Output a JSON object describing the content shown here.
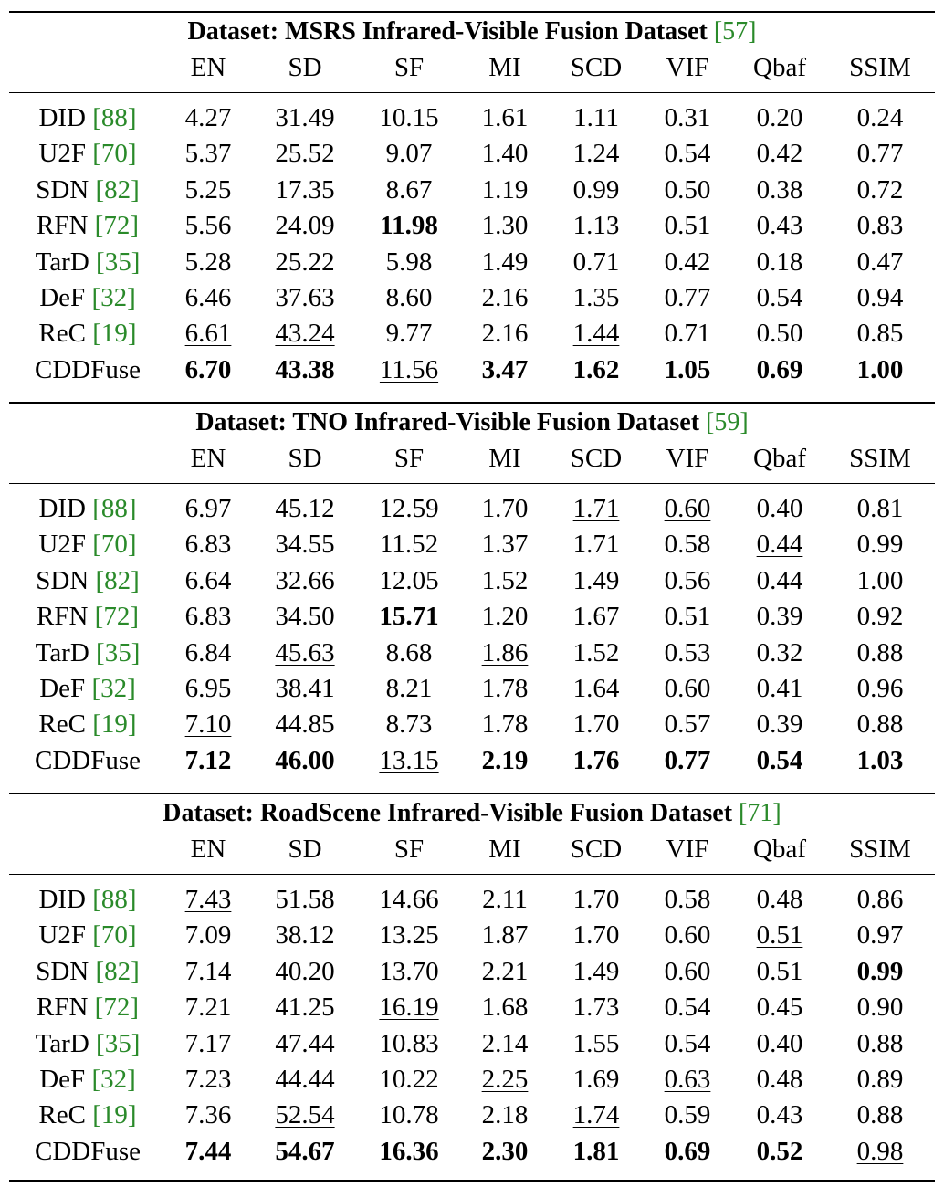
{
  "columns": [
    "EN",
    "SD",
    "SF",
    "MI",
    "SCD",
    "VIF",
    "Qbaf",
    "SSIM"
  ],
  "sections": [
    {
      "title": "Dataset: MSRS Infrared-Visible Fusion Dataset",
      "title_ref": "[57]",
      "rows": [
        {
          "method": "DID",
          "ref": "[88]",
          "values": [
            "4.27",
            "31.49",
            "10.15",
            "1.61",
            "1.11",
            "0.31",
            "0.20",
            "0.24"
          ],
          "bold": [],
          "underline": []
        },
        {
          "method": "U2F",
          "ref": "[70]",
          "values": [
            "5.37",
            "25.52",
            "9.07",
            "1.40",
            "1.24",
            "0.54",
            "0.42",
            "0.77"
          ],
          "bold": [],
          "underline": []
        },
        {
          "method": "SDN",
          "ref": "[82]",
          "values": [
            "5.25",
            "17.35",
            "8.67",
            "1.19",
            "0.99",
            "0.50",
            "0.38",
            "0.72"
          ],
          "bold": [],
          "underline": []
        },
        {
          "method": "RFN",
          "ref": "[72]",
          "values": [
            "5.56",
            "24.09",
            "11.98",
            "1.30",
            "1.13",
            "0.51",
            "0.43",
            "0.83"
          ],
          "bold": [
            2
          ],
          "underline": []
        },
        {
          "method": "TarD",
          "ref": "[35]",
          "values": [
            "5.28",
            "25.22",
            "5.98",
            "1.49",
            "0.71",
            "0.42",
            "0.18",
            "0.47"
          ],
          "bold": [],
          "underline": []
        },
        {
          "method": "DeF",
          "ref": "[32]",
          "values": [
            "6.46",
            "37.63",
            "8.60",
            "2.16",
            "1.35",
            "0.77",
            "0.54",
            "0.94"
          ],
          "bold": [],
          "underline": [
            3,
            5,
            6,
            7
          ]
        },
        {
          "method": "ReC",
          "ref": "[19]",
          "values": [
            "6.61",
            "43.24",
            "9.77",
            "2.16",
            "1.44",
            "0.71",
            "0.50",
            "0.85"
          ],
          "bold": [],
          "underline": [
            0,
            1,
            4
          ]
        },
        {
          "method": "CDDFuse",
          "ref": "",
          "values": [
            "6.70",
            "43.38",
            "11.56",
            "3.47",
            "1.62",
            "1.05",
            "0.69",
            "1.00"
          ],
          "bold": [
            0,
            1,
            3,
            4,
            5,
            6,
            7
          ],
          "underline": [
            2
          ]
        }
      ]
    },
    {
      "title": "Dataset: TNO Infrared-Visible Fusion Dataset",
      "title_ref": "[59]",
      "rows": [
        {
          "method": "DID",
          "ref": "[88]",
          "values": [
            "6.97",
            "45.12",
            "12.59",
            "1.70",
            "1.71",
            "0.60",
            "0.40",
            "0.81"
          ],
          "bold": [],
          "underline": [
            4,
            5
          ]
        },
        {
          "method": "U2F",
          "ref": "[70]",
          "values": [
            "6.83",
            "34.55",
            "11.52",
            "1.37",
            "1.71",
            "0.58",
            "0.44",
            "0.99"
          ],
          "bold": [],
          "underline": [
            6
          ]
        },
        {
          "method": "SDN",
          "ref": "[82]",
          "values": [
            "6.64",
            "32.66",
            "12.05",
            "1.52",
            "1.49",
            "0.56",
            "0.44",
            "1.00"
          ],
          "bold": [],
          "underline": [
            7
          ]
        },
        {
          "method": "RFN",
          "ref": "[72]",
          "values": [
            "6.83",
            "34.50",
            "15.71",
            "1.20",
            "1.67",
            "0.51",
            "0.39",
            "0.92"
          ],
          "bold": [
            2
          ],
          "underline": []
        },
        {
          "method": "TarD",
          "ref": "[35]",
          "values": [
            "6.84",
            "45.63",
            "8.68",
            "1.86",
            "1.52",
            "0.53",
            "0.32",
            "0.88"
          ],
          "bold": [],
          "underline": [
            1,
            3
          ]
        },
        {
          "method": "DeF",
          "ref": "[32]",
          "values": [
            "6.95",
            "38.41",
            "8.21",
            "1.78",
            "1.64",
            "0.60",
            "0.41",
            "0.96"
          ],
          "bold": [],
          "underline": []
        },
        {
          "method": "ReC",
          "ref": "[19]",
          "values": [
            "7.10",
            "44.85",
            "8.73",
            "1.78",
            "1.70",
            "0.57",
            "0.39",
            "0.88"
          ],
          "bold": [],
          "underline": [
            0
          ]
        },
        {
          "method": "CDDFuse",
          "ref": "",
          "values": [
            "7.12",
            "46.00",
            "13.15",
            "2.19",
            "1.76",
            "0.77",
            "0.54",
            "1.03"
          ],
          "bold": [
            0,
            1,
            3,
            4,
            5,
            6,
            7
          ],
          "underline": [
            2
          ]
        }
      ]
    },
    {
      "title": "Dataset: RoadScene Infrared-Visible Fusion Dataset",
      "title_ref": "[71]",
      "rows": [
        {
          "method": "DID",
          "ref": "[88]",
          "values": [
            "7.43",
            "51.58",
            "14.66",
            "2.11",
            "1.70",
            "0.58",
            "0.48",
            "0.86"
          ],
          "bold": [],
          "underline": [
            0
          ]
        },
        {
          "method": "U2F",
          "ref": "[70]",
          "values": [
            "7.09",
            "38.12",
            "13.25",
            "1.87",
            "1.70",
            "0.60",
            "0.51",
            "0.97"
          ],
          "bold": [],
          "underline": [
            6
          ]
        },
        {
          "method": "SDN",
          "ref": "[82]",
          "values": [
            "7.14",
            "40.20",
            "13.70",
            "2.21",
            "1.49",
            "0.60",
            "0.51",
            "0.99"
          ],
          "bold": [
            7
          ],
          "underline": []
        },
        {
          "method": "RFN",
          "ref": "[72]",
          "values": [
            "7.21",
            "41.25",
            "16.19",
            "1.68",
            "1.73",
            "0.54",
            "0.45",
            "0.90"
          ],
          "bold": [],
          "underline": [
            2
          ]
        },
        {
          "method": "TarD",
          "ref": "[35]",
          "values": [
            "7.17",
            "47.44",
            "10.83",
            "2.14",
            "1.55",
            "0.54",
            "0.40",
            "0.88"
          ],
          "bold": [],
          "underline": []
        },
        {
          "method": "DeF",
          "ref": "[32]",
          "values": [
            "7.23",
            "44.44",
            "10.22",
            "2.25",
            "1.69",
            "0.63",
            "0.48",
            "0.89"
          ],
          "bold": [],
          "underline": [
            3,
            5
          ]
        },
        {
          "method": "ReC",
          "ref": "[19]",
          "values": [
            "7.36",
            "52.54",
            "10.78",
            "2.18",
            "1.74",
            "0.59",
            "0.43",
            "0.88"
          ],
          "bold": [],
          "underline": [
            1,
            4
          ]
        },
        {
          "method": "CDDFuse",
          "ref": "",
          "values": [
            "7.44",
            "54.67",
            "16.36",
            "2.30",
            "1.81",
            "0.69",
            "0.52",
            "0.98"
          ],
          "bold": [
            0,
            1,
            2,
            3,
            4,
            5,
            6
          ],
          "underline": [
            7
          ]
        }
      ]
    }
  ]
}
